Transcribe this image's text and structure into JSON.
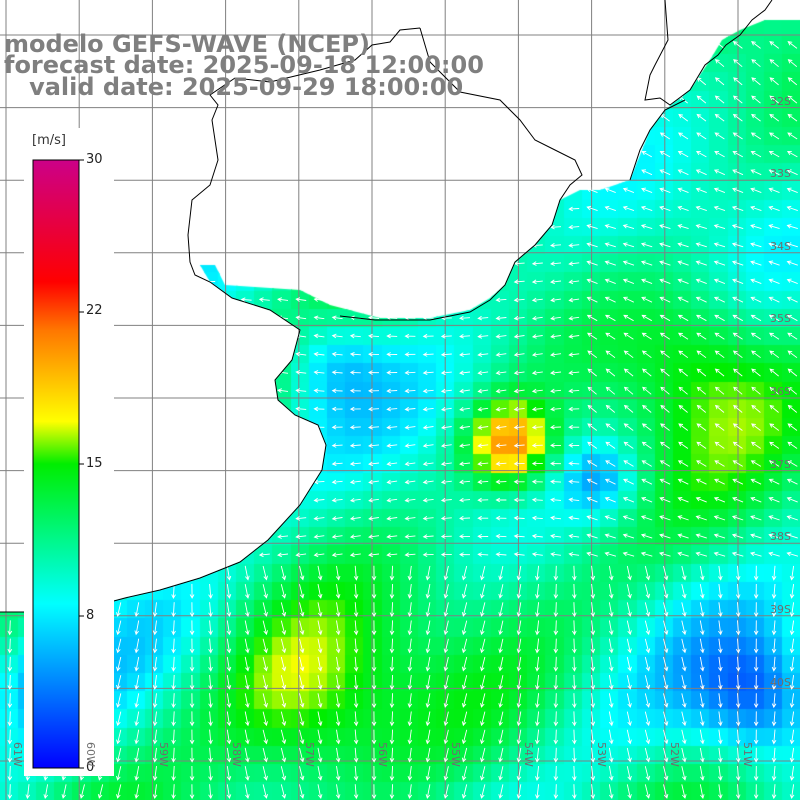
{
  "title": {
    "line1": "modelo GEFS-WAVE (NCEP)",
    "line2": "forecast date: 2025-09-18 12:00:00",
    "line3": "   valid date: 2025-09-29 18:00:00"
  },
  "colorbar": {
    "unit": "[m/s]",
    "ticks": [
      "30",
      "22",
      "15",
      "8",
      "0"
    ],
    "range": [
      0,
      30
    ],
    "colors": [
      "#0000ff",
      "#00aaff",
      "#00ffff",
      "#00ee00",
      "#ffff00",
      "#ff7700",
      "#ff0000",
      "#cc0088"
    ]
  },
  "grid": {
    "lat_labels": [
      "32S",
      "33S",
      "34S",
      "35S",
      "36S",
      "37S",
      "38S",
      "39S",
      "40S"
    ],
    "lon_labels": [
      "61W",
      "60W",
      "59W",
      "58W",
      "57W",
      "56W",
      "55W",
      "54W",
      "53W",
      "52W",
      "51W"
    ]
  },
  "map_style": {
    "land_color": "#ffffff",
    "coast_color": "#000000",
    "grid_color": "#808080",
    "arrow_color": "#ffffff"
  }
}
